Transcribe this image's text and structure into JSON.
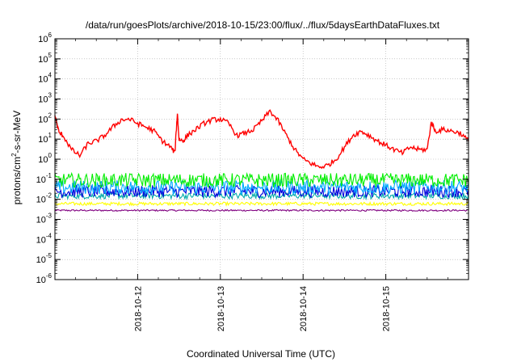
{
  "chart_data": {
    "type": "line",
    "title": "/data/run/goesPlots/archive/2018-10-15/23:00/flux/../flux/5daysEarthDataFluxes.txt",
    "xlabel": "Coordinated Universal Time (UTC)",
    "ylabel": {
      "pre": "protons/cm",
      "sup": "2",
      "post": "-s-sr-MeV"
    },
    "x_unit": "days",
    "xlim": [
      0,
      5
    ],
    "x_ticks": [
      {
        "label": "2018-10-12",
        "x": 1
      },
      {
        "label": "2018-10-13",
        "x": 2
      },
      {
        "label": "2018-10-14",
        "x": 3
      },
      {
        "label": "2018-10-15",
        "x": 4
      }
    ],
    "yscale": "log",
    "ylim_exp": [
      -6,
      6
    ],
    "y_ticks": [
      {
        "base": "10",
        "exp": "6"
      },
      {
        "base": "10",
        "exp": "5"
      },
      {
        "base": "10",
        "exp": "4"
      },
      {
        "base": "10",
        "exp": "3"
      },
      {
        "base": "10",
        "exp": "2"
      },
      {
        "base": "10",
        "exp": "1"
      },
      {
        "base": "10",
        "exp": "0"
      },
      {
        "base": "10",
        "exp": "-1"
      },
      {
        "base": "10",
        "exp": "-2"
      },
      {
        "base": "10",
        "exp": "-3"
      },
      {
        "base": "10",
        "exp": "-4"
      },
      {
        "base": "10",
        "exp": "-5"
      },
      {
        "base": "10",
        "exp": "-6"
      }
    ],
    "grid": true,
    "series": [
      {
        "color": "#ff0000",
        "x": [
          0,
          0.05,
          0.1,
          0.2,
          0.3,
          0.4,
          0.5,
          0.6,
          0.7,
          0.8,
          0.9,
          1.0,
          1.1,
          1.2,
          1.3,
          1.4,
          1.45,
          1.48,
          1.5,
          1.55,
          1.6,
          1.7,
          1.8,
          1.9,
          2.0,
          2.1,
          2.2,
          2.3,
          2.4,
          2.5,
          2.6,
          2.7,
          2.8,
          2.9,
          3.0,
          3.1,
          3.2,
          3.3,
          3.4,
          3.5,
          3.6,
          3.7,
          3.8,
          3.9,
          4.0,
          4.1,
          4.2,
          4.3,
          4.4,
          4.5,
          4.55,
          4.6,
          4.7,
          4.8,
          4.9,
          5.0
        ],
        "y": [
          150,
          20,
          15,
          3,
          1.5,
          6,
          8,
          15,
          40,
          90,
          100,
          60,
          40,
          25,
          8,
          4,
          2,
          200,
          10,
          8,
          15,
          30,
          60,
          90,
          100,
          60,
          15,
          20,
          30,
          80,
          250,
          80,
          15,
          3,
          1,
          0.6,
          0.4,
          0.5,
          1,
          4,
          15,
          25,
          15,
          8,
          5,
          3,
          2,
          4,
          3,
          3,
          70,
          25,
          30,
          25,
          20,
          8
        ]
      },
      {
        "color": "#00ee00",
        "base": 0.09,
        "spread": 0.35
      },
      {
        "color": "#00aaff",
        "base": 0.04,
        "spread": 0.35
      },
      {
        "color": "#0000dd",
        "base": 0.025,
        "spread": 0.3
      },
      {
        "color": "#00aaaa",
        "base": 0.015,
        "spread": 0.15
      },
      {
        "color": "#ffff00",
        "base": 0.006,
        "spread": 0.08
      },
      {
        "color": "#800080",
        "base": 0.0028,
        "spread": 0.04
      }
    ]
  }
}
